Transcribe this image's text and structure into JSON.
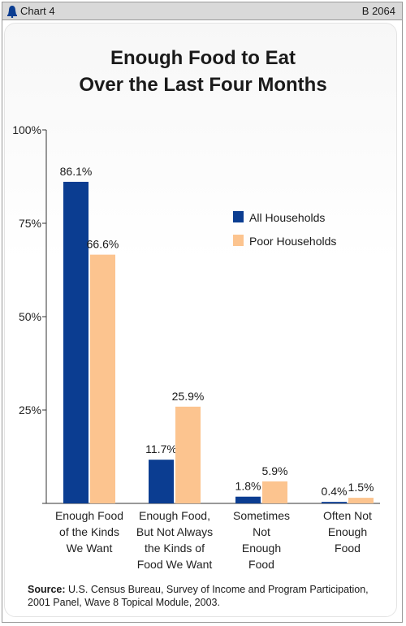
{
  "header": {
    "chart_number": "Chart 4",
    "report_id": "B 2064",
    "icon": "liberty-bell-icon"
  },
  "title_lines": [
    "Enough Food to Eat",
    "Over the Last Four Months"
  ],
  "source": {
    "label": "Source:",
    "text": "U.S. Census Bureau, Survey of Income and Program Participation, 2001 Panel, Wave 8 Topical Module, 2003."
  },
  "chart_data": {
    "type": "bar",
    "title": "Enough Food to Eat Over the Last Four Months",
    "categories": [
      [
        "Enough Food",
        "of the Kinds",
        "We Want"
      ],
      [
        "Enough Food,",
        "But Not Always",
        "the Kinds of",
        "Food We Want"
      ],
      [
        "Sometimes",
        "Not",
        "Enough",
        "Food"
      ],
      [
        "Often Not",
        "Enough",
        "Food"
      ]
    ],
    "series": [
      {
        "name": "All Households",
        "color": "#0b3d91",
        "values": [
          86.1,
          11.7,
          1.8,
          0.4
        ],
        "labels": [
          "86.1%",
          "11.7%",
          "1.8%",
          "0.4%"
        ]
      },
      {
        "name": "Poor Households",
        "color": "#fcc48f",
        "values": [
          66.6,
          25.9,
          5.9,
          1.5
        ],
        "labels": [
          "66.6%",
          "25.9%",
          "5.9%",
          "1.5%"
        ]
      }
    ],
    "ylim": [
      0,
      100
    ],
    "yticks": [
      0,
      25,
      50,
      75,
      100
    ],
    "ytick_labels": [
      "",
      "25%",
      "50%",
      "75%",
      "100%"
    ],
    "legend_position": "top-right",
    "grid": false
  }
}
